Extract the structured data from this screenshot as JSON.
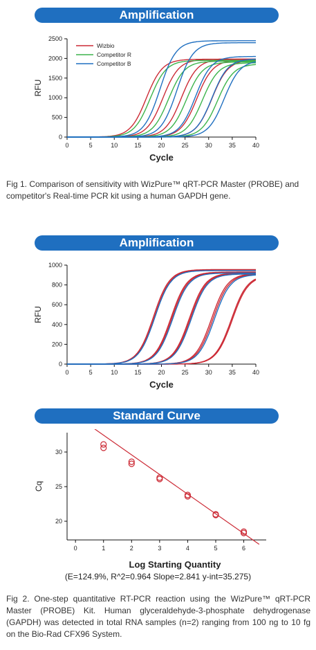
{
  "colors": {
    "banner": "#1f6fc0",
    "wizbio": "#cc2a35",
    "competitor_r": "#3cb44b",
    "competitor_b": "#1f6fc0"
  },
  "fig1": {
    "banner": "Amplification",
    "caption": "Fig 1. Comparison of sensitivity with WizPure™ qRT-PCR Master (PROBE) and competitor's Real-time PCR kit using a human GAPDH gene."
  },
  "fig2": {
    "banner_amp": "Amplification",
    "banner_std": "Standard Curve",
    "stats": "(E=124.9%, R^2=0.964 Slope=2.841 y-int=35.275)",
    "caption": "Fig 2. One-step quantitative RT-PCR reaction using the WizPure™ qRT-PCR Master (PROBE) Kit. Human glyceraldehyde-3-phosphate dehydrogenase (GAPDH) was detected in total RNA samples (n=2) ranging from 100 ng to 10 fg on the Bio-Rad CFX96 System."
  },
  "chart_data": [
    {
      "type": "line",
      "title": "Amplification",
      "xlabel": "Cycle",
      "ylabel": "RFU",
      "xlim": [
        0,
        40
      ],
      "ylim": [
        0,
        2500
      ],
      "xticks": [
        0,
        5,
        10,
        15,
        20,
        25,
        30,
        35,
        40
      ],
      "yticks": [
        0,
        500,
        1000,
        1500,
        2000,
        2500
      ],
      "legend": "top-left",
      "grid": false,
      "series": [
        {
          "name": "Wizbio",
          "color": "#cc2a35",
          "curves": [
            {
              "midpoint": 16.8,
              "plateau": 1980
            },
            {
              "midpoint": 20.3,
              "plateau": 1980
            },
            {
              "midpoint": 24.2,
              "plateau": 1980
            },
            {
              "midpoint": 27.5,
              "plateau": 1960
            },
            {
              "midpoint": 30.7,
              "plateau": 1960
            }
          ]
        },
        {
          "name": "Competitor R",
          "color": "#3cb44b",
          "curves": [
            {
              "midpoint": 17.6,
              "plateau": 1950
            },
            {
              "midpoint": 21.5,
              "plateau": 1930
            },
            {
              "midpoint": 25.3,
              "plateau": 1910
            },
            {
              "midpoint": 28.7,
              "plateau": 1890
            },
            {
              "midpoint": 31.9,
              "plateau": 1860
            }
          ]
        },
        {
          "name": "Competitor B",
          "color": "#1f6fc0",
          "curves": [
            {
              "midpoint": 19.7,
              "plateau": 2450
            },
            {
              "midpoint": 23.3,
              "plateau": 2400
            },
            {
              "midpoint": 27.2,
              "plateau": 2050
            },
            {
              "midpoint": 30.7,
              "plateau": 1990
            },
            {
              "midpoint": 33.3,
              "plateau": 1950
            }
          ]
        }
      ]
    },
    {
      "type": "line",
      "title": "Amplification",
      "xlabel": "Cycle",
      "ylabel": "RFU",
      "xlim": [
        0,
        40
      ],
      "ylim": [
        0,
        1000
      ],
      "xticks": [
        0,
        5,
        10,
        15,
        20,
        25,
        30,
        35,
        40
      ],
      "yticks": [
        0,
        200,
        400,
        600,
        800,
        1000
      ],
      "grid": false,
      "series": [
        {
          "color": "#cc2a35",
          "curves": [
            {
              "midpoint": 18.3,
              "plateau": 955
            },
            {
              "midpoint": 18.5,
              "plateau": 950
            },
            {
              "midpoint": 22.0,
              "plateau": 930
            },
            {
              "midpoint": 22.2,
              "plateau": 925
            },
            {
              "midpoint": 25.9,
              "plateau": 920
            },
            {
              "midpoint": 26.1,
              "plateau": 915
            },
            {
              "midpoint": 30.6,
              "plateau": 915
            },
            {
              "midpoint": 30.9,
              "plateau": 910
            },
            {
              "midpoint": 34.8,
              "plateau": 900
            },
            {
              "midpoint": 35.0,
              "plateau": 895
            }
          ]
        },
        {
          "color": "#1f6fc0",
          "curves": [
            {
              "midpoint": 18.6,
              "plateau": 945
            },
            {
              "midpoint": 22.4,
              "plateau": 920
            },
            {
              "midpoint": 26.3,
              "plateau": 910
            },
            {
              "midpoint": 31.2,
              "plateau": 905
            }
          ]
        }
      ]
    },
    {
      "type": "scatter",
      "title": "Standard Curve",
      "xlabel": "Log Starting Quantity",
      "ylabel": "Cq",
      "xlim": [
        -0.3,
        6.8
      ],
      "ylim": [
        17.3,
        32.8
      ],
      "xticks": [
        0,
        1,
        2,
        3,
        4,
        5,
        6
      ],
      "yticks": [
        20,
        25,
        30
      ],
      "grid": false,
      "color": "#cc2a35",
      "points": [
        {
          "x": 1,
          "y": 31.1
        },
        {
          "x": 1,
          "y": 30.6
        },
        {
          "x": 2,
          "y": 28.6
        },
        {
          "x": 2,
          "y": 28.3
        },
        {
          "x": 3,
          "y": 26.3
        },
        {
          "x": 3,
          "y": 26.1
        },
        {
          "x": 4,
          "y": 23.8
        },
        {
          "x": 4,
          "y": 23.6
        },
        {
          "x": 5,
          "y": 21.0
        },
        {
          "x": 5,
          "y": 20.9
        },
        {
          "x": 6,
          "y": 18.5
        },
        {
          "x": 6,
          "y": 18.3
        }
      ],
      "fit": {
        "slope": -2.841,
        "intercept": 35.275,
        "x_range": [
          0.3,
          6.55
        ]
      }
    }
  ]
}
